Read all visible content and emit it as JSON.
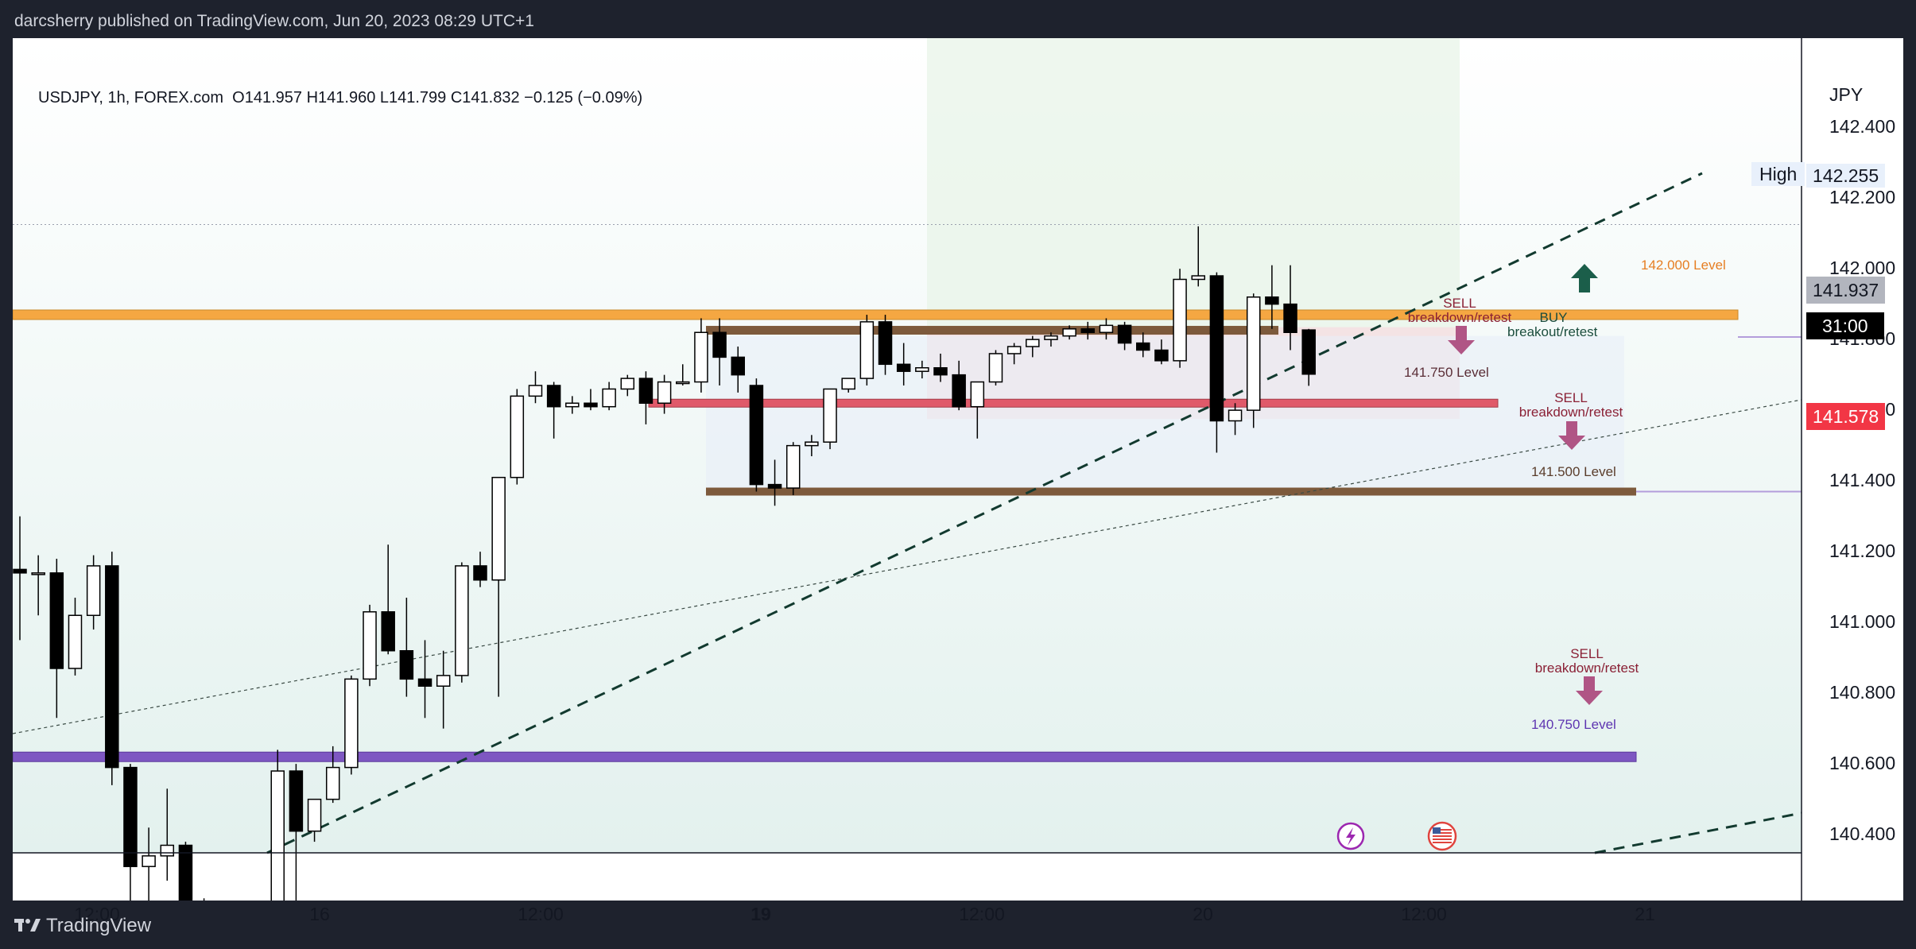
{
  "header": {
    "publisher_line": "darcsherry published on TradingView.com, Jun 20, 2023 08:29 UTC+1"
  },
  "footer": {
    "brand": "TradingView"
  },
  "legend": {
    "symbol_line": "USDJPY, 1h, FOREX.com",
    "ohlc": "O141.957  H141.960  L141.799  C141.832  −0.125 (−0.09%)"
  },
  "axis": {
    "currency": "JPY",
    "y_ticks": [
      "142.400",
      "142.200",
      "142.000",
      "141.800",
      "141.600",
      "141.400",
      "141.200",
      "141.000",
      "140.800",
      "140.600",
      "140.400"
    ],
    "x_ticks": [
      "12:00",
      "16",
      "12:00",
      "19",
      "12:00",
      "20",
      "12:00",
      "21"
    ]
  },
  "price_tags": {
    "high_label": "High",
    "high_value": "142.255",
    "level_value": "141.937",
    "countdown": "31:00",
    "last_price": "141.578"
  },
  "annotations": {
    "level_142000": "142.000 Level",
    "level_141750": "141.750 Level",
    "level_141500": "141.500 Level",
    "level_140750": "140.750 Level",
    "buy_title": "BUY",
    "buy_sub": "breakout/retest",
    "sell1_title": "SELL",
    "sell1_sub": "breakdown/retest",
    "sell2_title": "SELL",
    "sell2_sub": "breakdown/retest",
    "sell3_title": "SELL",
    "sell3_sub": "breakdown/retest"
  },
  "colors": {
    "orange_level": "#f5a742",
    "brown_level": "#7d5a3c",
    "red_level": "#e05a6a",
    "purple_level": "#7e57c2",
    "sell_arrow": "#b05585",
    "buy_arrow": "#1b5e4a",
    "last_price": "#f23645"
  },
  "chart_data": {
    "type": "candlestick",
    "symbol": "USDJPY",
    "timeframe": "1h",
    "ylim": [
      140.35,
      142.55
    ],
    "levels": [
      142.0,
      141.75,
      141.5,
      140.75
    ],
    "high": 142.255,
    "candles": [
      {
        "o": 141.28,
        "h": 141.43,
        "l": 141.08,
        "c": 141.27
      },
      {
        "o": 141.27,
        "h": 141.32,
        "l": 141.15,
        "c": 141.27
      },
      {
        "o": 141.27,
        "h": 141.31,
        "l": 140.86,
        "c": 141.0
      },
      {
        "o": 141.0,
        "h": 141.2,
        "l": 140.98,
        "c": 141.15
      },
      {
        "o": 141.15,
        "h": 141.32,
        "l": 141.11,
        "c": 141.29
      },
      {
        "o": 141.29,
        "h": 141.33,
        "l": 140.67,
        "c": 140.72
      },
      {
        "o": 140.72,
        "h": 140.73,
        "l": 140.28,
        "c": 140.44
      },
      {
        "o": 140.44,
        "h": 140.55,
        "l": 140.2,
        "c": 140.47
      },
      {
        "o": 140.47,
        "h": 140.66,
        "l": 140.4,
        "c": 140.5
      },
      {
        "o": 140.5,
        "h": 140.51,
        "l": 140.18,
        "c": 140.3
      },
      {
        "o": 140.3,
        "h": 140.35,
        "l": 140.27,
        "c": 140.33
      },
      {
        "o": 140.33,
        "h": 140.34,
        "l": 140.3,
        "c": 140.31
      },
      {
        "o": 140.31,
        "h": 140.33,
        "l": 140.3,
        "c": 140.33
      },
      {
        "o": 140.33,
        "h": 140.34,
        "l": 140.31,
        "c": 140.32
      },
      {
        "o": 140.32,
        "h": 140.77,
        "l": 140.32,
        "c": 140.71
      },
      {
        "o": 140.71,
        "h": 140.73,
        "l": 140.26,
        "c": 140.54
      },
      {
        "o": 140.54,
        "h": 140.62,
        "l": 140.51,
        "c": 140.63
      },
      {
        "o": 140.63,
        "h": 140.78,
        "l": 140.62,
        "c": 140.72
      },
      {
        "o": 140.72,
        "h": 140.98,
        "l": 140.7,
        "c": 140.97
      },
      {
        "o": 140.97,
        "h": 141.18,
        "l": 140.95,
        "c": 141.16
      },
      {
        "o": 141.16,
        "h": 141.35,
        "l": 141.04,
        "c": 141.05
      },
      {
        "o": 141.05,
        "h": 141.2,
        "l": 140.92,
        "c": 140.97
      },
      {
        "o": 140.97,
        "h": 141.08,
        "l": 140.86,
        "c": 140.95
      },
      {
        "o": 140.95,
        "h": 141.05,
        "l": 140.83,
        "c": 140.98
      },
      {
        "o": 140.98,
        "h": 141.3,
        "l": 140.96,
        "c": 141.29
      },
      {
        "o": 141.29,
        "h": 141.33,
        "l": 141.23,
        "c": 141.25
      },
      {
        "o": 141.25,
        "h": 141.53,
        "l": 140.92,
        "c": 141.54
      },
      {
        "o": 141.54,
        "h": 141.79,
        "l": 141.52,
        "c": 141.77
      },
      {
        "o": 141.77,
        "h": 141.84,
        "l": 141.75,
        "c": 141.8
      },
      {
        "o": 141.8,
        "h": 141.81,
        "l": 141.65,
        "c": 141.74
      },
      {
        "o": 141.74,
        "h": 141.77,
        "l": 141.72,
        "c": 141.75
      },
      {
        "o": 141.75,
        "h": 141.79,
        "l": 141.73,
        "c": 141.74
      },
      {
        "o": 141.74,
        "h": 141.81,
        "l": 141.73,
        "c": 141.79
      },
      {
        "o": 141.79,
        "h": 141.83,
        "l": 141.77,
        "c": 141.82
      },
      {
        "o": 141.82,
        "h": 141.84,
        "l": 141.69,
        "c": 141.75
      },
      {
        "o": 141.75,
        "h": 141.83,
        "l": 141.72,
        "c": 141.81
      },
      {
        "o": 141.81,
        "h": 141.86,
        "l": 141.8,
        "c": 141.81
      },
      {
        "o": 141.81,
        "h": 141.99,
        "l": 141.78,
        "c": 141.95
      },
      {
        "o": 141.95,
        "h": 141.99,
        "l": 141.8,
        "c": 141.88
      },
      {
        "o": 141.88,
        "h": 141.91,
        "l": 141.78,
        "c": 141.83
      },
      {
        "o": 141.8,
        "h": 141.82,
        "l": 141.5,
        "c": 141.52
      },
      {
        "o": 141.52,
        "h": 141.59,
        "l": 141.46,
        "c": 141.51
      },
      {
        "o": 141.51,
        "h": 141.64,
        "l": 141.49,
        "c": 141.63
      },
      {
        "o": 141.63,
        "h": 141.66,
        "l": 141.6,
        "c": 141.64
      },
      {
        "o": 141.64,
        "h": 141.78,
        "l": 141.62,
        "c": 141.79
      },
      {
        "o": 141.79,
        "h": 141.82,
        "l": 141.78,
        "c": 141.82
      },
      {
        "o": 141.82,
        "h": 142.0,
        "l": 141.8,
        "c": 141.98
      },
      {
        "o": 141.98,
        "h": 142.0,
        "l": 141.83,
        "c": 141.86
      },
      {
        "o": 141.86,
        "h": 141.92,
        "l": 141.8,
        "c": 141.84
      },
      {
        "o": 141.84,
        "h": 141.87,
        "l": 141.82,
        "c": 141.85
      },
      {
        "o": 141.85,
        "h": 141.89,
        "l": 141.81,
        "c": 141.83
      },
      {
        "o": 141.83,
        "h": 141.87,
        "l": 141.73,
        "c": 141.74
      },
      {
        "o": 141.74,
        "h": 141.81,
        "l": 141.65,
        "c": 141.81
      },
      {
        "o": 141.81,
        "h": 141.9,
        "l": 141.8,
        "c": 141.89
      },
      {
        "o": 141.89,
        "h": 141.92,
        "l": 141.86,
        "c": 141.91
      },
      {
        "o": 141.91,
        "h": 141.94,
        "l": 141.88,
        "c": 141.93
      },
      {
        "o": 141.93,
        "h": 141.95,
        "l": 141.91,
        "c": 141.94
      },
      {
        "o": 141.94,
        "h": 141.97,
        "l": 141.93,
        "c": 141.96
      },
      {
        "o": 141.96,
        "h": 141.98,
        "l": 141.93,
        "c": 141.95
      },
      {
        "o": 141.95,
        "h": 141.99,
        "l": 141.93,
        "c": 141.97
      },
      {
        "o": 141.97,
        "h": 141.98,
        "l": 141.9,
        "c": 141.92
      },
      {
        "o": 141.92,
        "h": 141.95,
        "l": 141.88,
        "c": 141.9
      },
      {
        "o": 141.9,
        "h": 141.93,
        "l": 141.86,
        "c": 141.87
      },
      {
        "o": 141.87,
        "h": 142.13,
        "l": 141.85,
        "c": 142.1
      },
      {
        "o": 142.1,
        "h": 142.25,
        "l": 142.08,
        "c": 142.11
      },
      {
        "o": 142.11,
        "h": 142.12,
        "l": 141.61,
        "c": 141.7
      },
      {
        "o": 141.7,
        "h": 141.75,
        "l": 141.66,
        "c": 141.73
      },
      {
        "o": 141.73,
        "h": 142.06,
        "l": 141.68,
        "c": 142.05
      },
      {
        "o": 142.05,
        "h": 142.14,
        "l": 141.96,
        "c": 142.03
      },
      {
        "o": 142.03,
        "h": 142.14,
        "l": 141.9,
        "c": 141.95
      },
      {
        "o": 141.957,
        "h": 141.96,
        "l": 141.799,
        "c": 141.832
      }
    ]
  }
}
